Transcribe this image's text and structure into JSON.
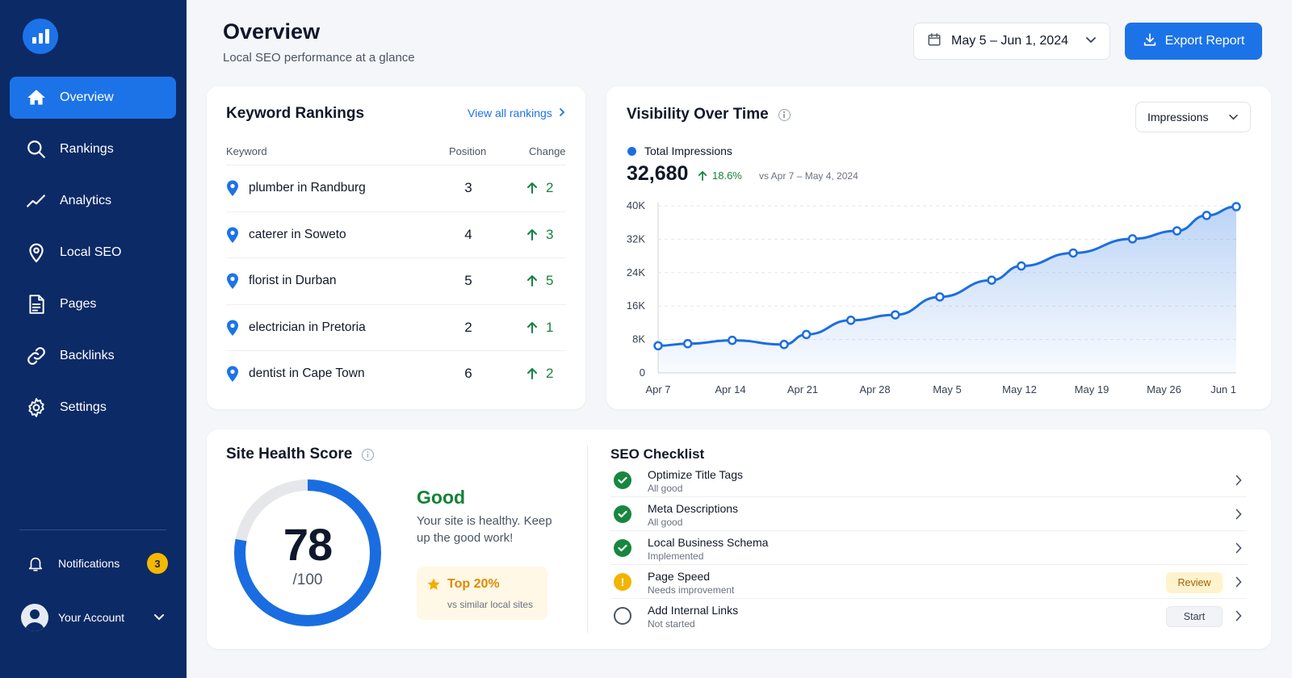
{
  "sidebar": {
    "nav": [
      {
        "label": "Overview",
        "icon": "home-icon",
        "active": true
      },
      {
        "label": "Rankings",
        "icon": "search-icon",
        "active": false
      },
      {
        "label": "Analytics",
        "icon": "trend-line-icon",
        "active": false
      },
      {
        "label": "Local SEO",
        "icon": "location-pin-icon",
        "active": false
      },
      {
        "label": "Pages",
        "icon": "document-icon",
        "active": false
      },
      {
        "label": "Backlinks",
        "icon": "link-icon",
        "active": false
      },
      {
        "label": "Settings",
        "icon": "gear-icon",
        "active": false
      }
    ],
    "notifications": {
      "label": "Notifications",
      "count": "3"
    },
    "account": {
      "label": "Your Account"
    }
  },
  "header": {
    "title": "Overview",
    "subtitle": "Local SEO performance at a glance",
    "date_range": "May 5 – Jun 1, 2024",
    "export_label": "Export Report"
  },
  "keywords": {
    "title": "Keyword Rankings",
    "view_all": "View all rankings",
    "columns": [
      "Keyword",
      "Position",
      "Change"
    ],
    "rows": [
      {
        "keyword": "plumber in Randburg",
        "position": "3",
        "change": "2"
      },
      {
        "keyword": "caterer in Soweto",
        "position": "4",
        "change": "3"
      },
      {
        "keyword": "florist in Durban",
        "position": "5",
        "change": "5"
      },
      {
        "keyword": "electrician in Pretoria",
        "position": "2",
        "change": "1"
      },
      {
        "keyword": "dentist in Cape Town",
        "position": "6",
        "change": "2"
      }
    ]
  },
  "visibility": {
    "title": "Visibility Over Time",
    "metric": "Impressions",
    "legend": "Total Impressions",
    "total": "32,680",
    "delta": "18.6%",
    "compare": "vs Apr 7 – May 4, 2024"
  },
  "chart_data": {
    "type": "area",
    "series": [
      {
        "name": "Total Impressions",
        "values": [
          6500,
          7000,
          7800,
          6800,
          9200,
          12600,
          13900,
          18200,
          22200,
          25600,
          28700,
          32100,
          34000,
          37700,
          39800
        ]
      }
    ],
    "x": [
      0,
      2,
      5,
      8.5,
      10,
      13,
      16,
      19,
      22.5,
      24.5,
      28,
      32,
      35,
      37,
      39
    ],
    "x_ticks": [
      "Apr 7",
      "Apr 14",
      "Apr 21",
      "Apr 28",
      "May 5",
      "May 12",
      "May 19",
      "May 26",
      "Jun 1"
    ],
    "y_ticks": [
      "0",
      "8K",
      "16K",
      "24K",
      "32K",
      "40K"
    ],
    "ylim": [
      0,
      40000
    ],
    "grid": "horizontal dashed",
    "colors": {
      "line": "#1c6ee0"
    }
  },
  "health": {
    "title": "Site Health Score",
    "score": "78",
    "max": "/100",
    "score_fraction": 0.78,
    "status": "Good",
    "message": "Your site is healthy. Keep up the good work!",
    "rank_label": "Top 20%",
    "rank_sub": "vs similar local sites"
  },
  "checklist": {
    "title": "SEO Checklist",
    "items": [
      {
        "name": "Optimize Title Tags",
        "note": "All good",
        "status": "done",
        "action": ""
      },
      {
        "name": "Meta Descriptions",
        "note": "All good",
        "status": "done",
        "action": ""
      },
      {
        "name": "Local Business Schema",
        "note": "Implemented",
        "status": "done",
        "action": ""
      },
      {
        "name": "Page Speed",
        "note": "Needs improvement",
        "status": "warn",
        "action": "Review"
      },
      {
        "name": "Add Internal Links",
        "note": "Not started",
        "status": "todo",
        "action": "Start"
      }
    ]
  }
}
